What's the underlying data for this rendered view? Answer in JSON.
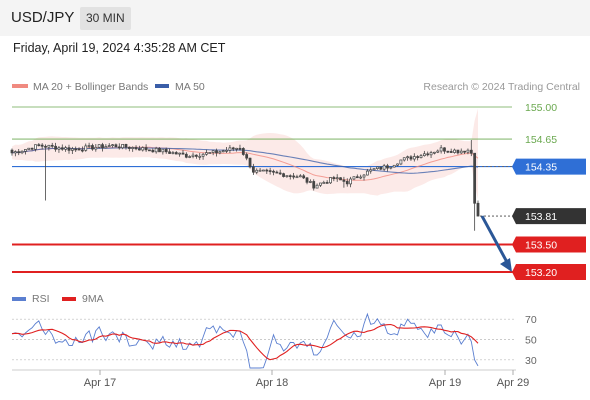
{
  "header": {
    "pair": "USD/JPY",
    "timeframe": "30 MIN",
    "timestamp": "Friday, April 19, 2024 4:35:28 AM CET"
  },
  "legend": {
    "bollinger_label": "MA 20 + Bollinger Bands",
    "ma50_label": "MA 50",
    "credit": "Research © 2024 Trading Central"
  },
  "colors": {
    "bollinger": "#f08a80",
    "ma50": "#3a5ea8",
    "resistance": "#6aa84f",
    "support": "#e02020",
    "pivot": "#2f6fd6",
    "current": "#333333",
    "arrow": "#2b5797",
    "rsi": "#5b7fd0",
    "rsi_ma": "#e02020"
  },
  "chart_data": [
    {
      "type": "line",
      "subtype": "candlestick",
      "ylim": [
        153.15,
        155.1
      ],
      "x_ticks": [
        "Apr 17",
        "Apr 18",
        "Apr 19",
        "Apr 29"
      ],
      "levels": [
        {
          "value": 155.0,
          "label": "155.00",
          "role": "resistance"
        },
        {
          "value": 154.65,
          "label": "154.65",
          "role": "resistance"
        },
        {
          "value": 154.35,
          "label": "154.35",
          "role": "pivot"
        },
        {
          "value": 153.81,
          "label": "153.81",
          "role": "current"
        },
        {
          "value": 153.5,
          "label": "153.50",
          "role": "support"
        },
        {
          "value": 153.2,
          "label": "153.20",
          "role": "support"
        }
      ],
      "series": [
        {
          "name": "MA 20 + Bollinger Bands"
        },
        {
          "name": "MA 50"
        }
      ],
      "forecast_arrow": {
        "from": 153.81,
        "to": 153.2
      }
    },
    {
      "type": "line",
      "ylim": [
        20,
        80
      ],
      "y_ticks": [
        70,
        50,
        30
      ],
      "series": [
        {
          "name": "RSI"
        },
        {
          "name": "9MA"
        }
      ]
    }
  ],
  "rsi_legend": {
    "rsi_label": "RSI",
    "ma_label": "9MA"
  }
}
